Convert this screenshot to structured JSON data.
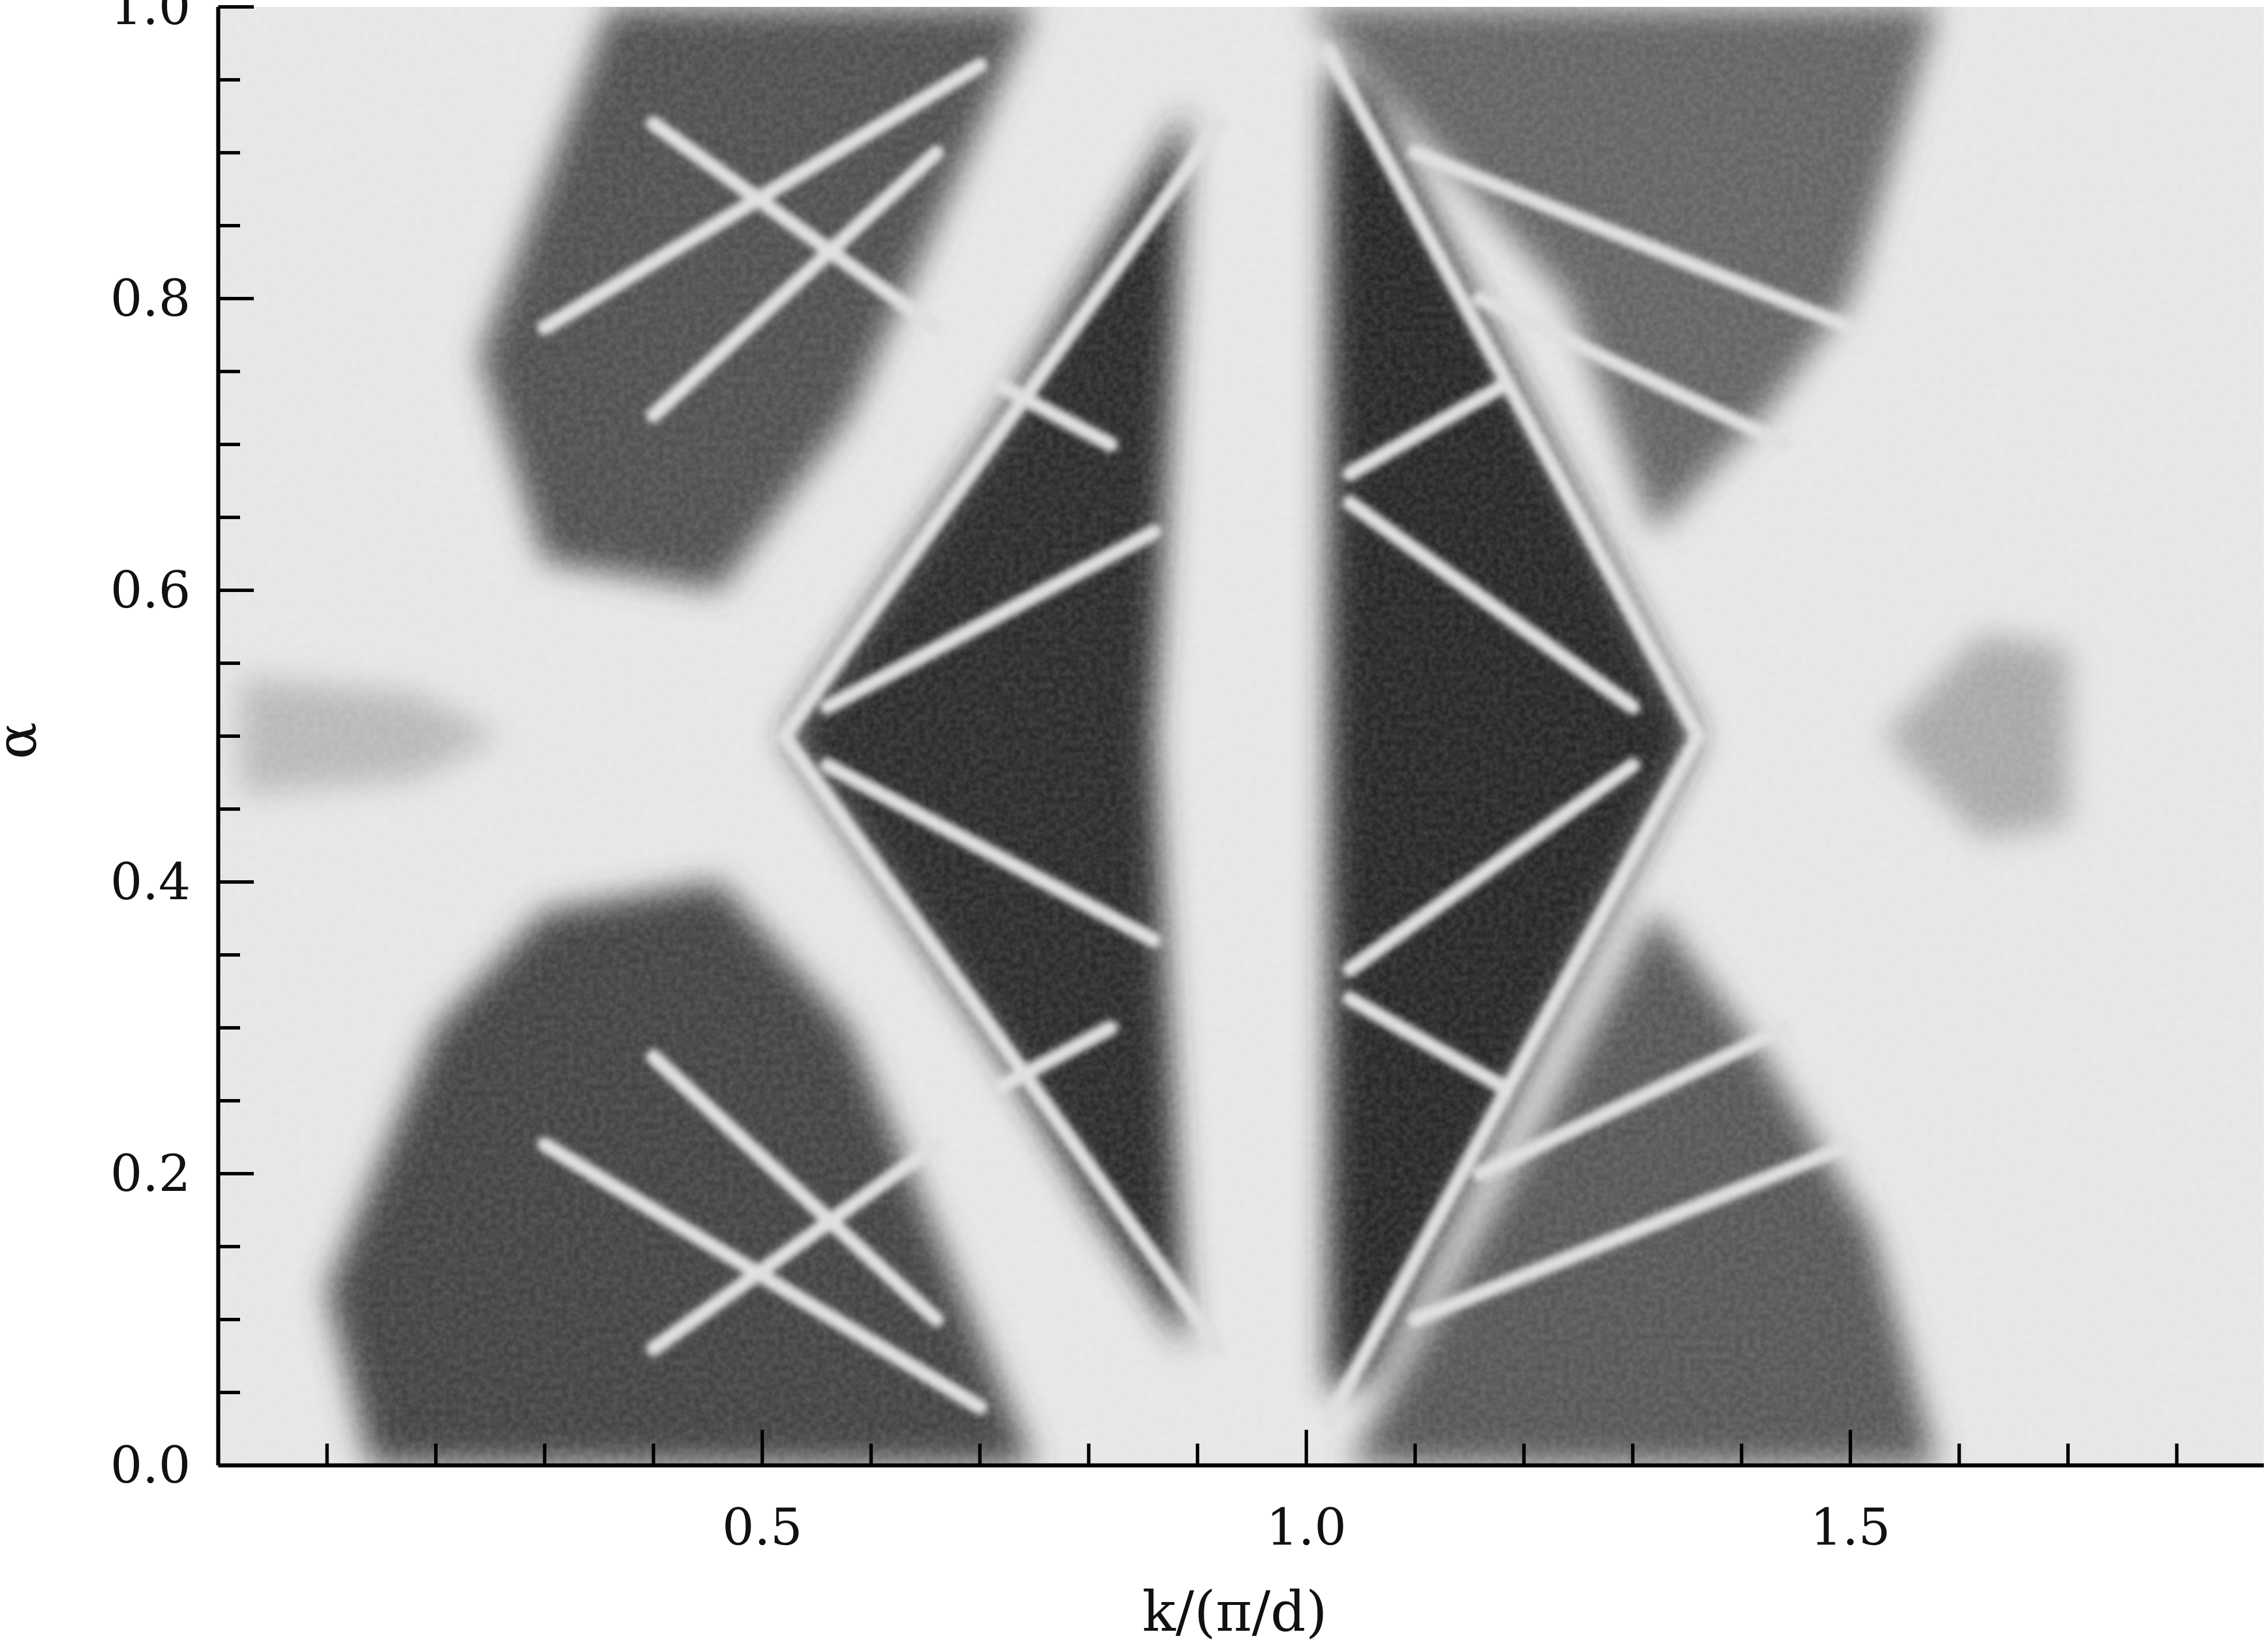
{
  "chart_data": {
    "type": "heatmap",
    "title": "",
    "xlabel": "k/(π/d)",
    "ylabel": "α",
    "xlim": [
      0.0,
      1.88
    ],
    "ylim": [
      0.0,
      1.0
    ],
    "x_major_ticks": [
      0.5,
      1.0,
      1.5
    ],
    "x_tick_labels": [
      "0.5",
      "1.0",
      "1.5"
    ],
    "x_minor_step": 0.1,
    "y_major_ticks": [
      0.0,
      0.2,
      0.4,
      0.6,
      0.8,
      1.0
    ],
    "y_tick_labels": [
      "0.0",
      "0.2",
      "0.4",
      "0.6",
      "0.8",
      "1.0"
    ],
    "y_minor_step": 0.05,
    "grid": false,
    "colormap": "grayscale: light = low density, dark = high density",
    "colors": {
      "background": "#e6e6e6",
      "dense": "#141414",
      "axis": "#000000"
    },
    "dark_regions": [
      {
        "name": "upper-left-fan",
        "polygon": [
          [
            0.24,
            0.76
          ],
          [
            0.36,
            1.0
          ],
          [
            0.75,
            1.0
          ],
          [
            0.58,
            0.72
          ],
          [
            0.46,
            0.6
          ],
          [
            0.3,
            0.62
          ]
        ],
        "shade": 0.72
      },
      {
        "name": "lower-left-fan",
        "polygon": [
          [
            0.14,
            0.0
          ],
          [
            0.75,
            0.0
          ],
          [
            0.58,
            0.3
          ],
          [
            0.46,
            0.4
          ],
          [
            0.3,
            0.38
          ],
          [
            0.2,
            0.3
          ],
          [
            0.1,
            0.12
          ]
        ],
        "shade": 0.78
      },
      {
        "name": "central-left-diamond",
        "polygon": [
          [
            0.52,
            0.5
          ],
          [
            0.72,
            0.72
          ],
          [
            0.8,
            0.82
          ],
          [
            0.89,
            0.93
          ],
          [
            0.86,
            0.5
          ],
          [
            0.89,
            0.08
          ],
          [
            0.8,
            0.18
          ],
          [
            0.72,
            0.28
          ]
        ],
        "shade": 0.9
      },
      {
        "name": "central-right-triangle",
        "polygon": [
          [
            1.02,
            0.96
          ],
          [
            1.02,
            0.05
          ],
          [
            1.06,
            0.06
          ],
          [
            1.36,
            0.5
          ],
          [
            1.06,
            0.94
          ]
        ],
        "shade": 0.92
      },
      {
        "name": "upper-right-fan",
        "polygon": [
          [
            1.0,
            1.0
          ],
          [
            1.58,
            1.0
          ],
          [
            1.5,
            0.8
          ],
          [
            1.42,
            0.72
          ],
          [
            1.32,
            0.64
          ],
          [
            1.24,
            0.8
          ]
        ],
        "shade": 0.62
      },
      {
        "name": "lower-right-fan",
        "polygon": [
          [
            1.04,
            0.0
          ],
          [
            1.58,
            0.0
          ],
          [
            1.52,
            0.16
          ],
          [
            1.42,
            0.28
          ],
          [
            1.32,
            0.38
          ],
          [
            1.22,
            0.24
          ]
        ],
        "shade": 0.68
      },
      {
        "name": "far-left-lobe",
        "polygon": [
          [
            0.02,
            0.46
          ],
          [
            0.18,
            0.47
          ],
          [
            0.26,
            0.5
          ],
          [
            0.18,
            0.53
          ],
          [
            0.02,
            0.54
          ]
        ],
        "shade": 0.22
      },
      {
        "name": "far-right-lobe",
        "polygon": [
          [
            1.53,
            0.5
          ],
          [
            1.62,
            0.57
          ],
          [
            1.7,
            0.56
          ],
          [
            1.7,
            0.44
          ],
          [
            1.62,
            0.43
          ]
        ],
        "shade": 0.3
      }
    ],
    "bright_lines": [
      {
        "x": [
          0.52,
          0.92
        ],
        "y": [
          0.5,
          0.92
        ]
      },
      {
        "x": [
          0.52,
          0.92
        ],
        "y": [
          0.5,
          0.08
        ]
      },
      {
        "x": [
          0.56,
          0.86
        ],
        "y": [
          0.52,
          0.64
        ]
      },
      {
        "x": [
          0.56,
          0.86
        ],
        "y": [
          0.48,
          0.36
        ]
      },
      {
        "x": [
          0.72,
          0.82
        ],
        "y": [
          0.74,
          0.7
        ]
      },
      {
        "x": [
          0.72,
          0.82
        ],
        "y": [
          0.26,
          0.3
        ]
      },
      {
        "x": [
          1.02,
          1.36
        ],
        "y": [
          0.97,
          0.5
        ]
      },
      {
        "x": [
          1.02,
          1.36
        ],
        "y": [
          0.03,
          0.5
        ]
      },
      {
        "x": [
          1.04,
          1.3
        ],
        "y": [
          0.66,
          0.52
        ]
      },
      {
        "x": [
          1.04,
          1.3
        ],
        "y": [
          0.34,
          0.48
        ]
      },
      {
        "x": [
          1.04,
          1.18
        ],
        "y": [
          0.68,
          0.74
        ]
      },
      {
        "x": [
          1.04,
          1.18
        ],
        "y": [
          0.32,
          0.26
        ]
      },
      {
        "x": [
          0.3,
          0.7
        ],
        "y": [
          0.78,
          0.96
        ]
      },
      {
        "x": [
          0.4,
          0.66
        ],
        "y": [
          0.72,
          0.9
        ]
      },
      {
        "x": [
          0.4,
          0.66
        ],
        "y": [
          0.92,
          0.78
        ]
      },
      {
        "x": [
          0.3,
          0.7
        ],
        "y": [
          0.22,
          0.04
        ]
      },
      {
        "x": [
          0.4,
          0.66
        ],
        "y": [
          0.28,
          0.1
        ]
      },
      {
        "x": [
          0.4,
          0.66
        ],
        "y": [
          0.08,
          0.22
        ]
      },
      {
        "x": [
          1.1,
          1.5
        ],
        "y": [
          0.9,
          0.78
        ]
      },
      {
        "x": [
          1.16,
          1.44
        ],
        "y": [
          0.8,
          0.7
        ]
      },
      {
        "x": [
          1.1,
          1.5
        ],
        "y": [
          0.1,
          0.22
        ]
      },
      {
        "x": [
          1.16,
          1.44
        ],
        "y": [
          0.2,
          0.3
        ]
      }
    ]
  }
}
